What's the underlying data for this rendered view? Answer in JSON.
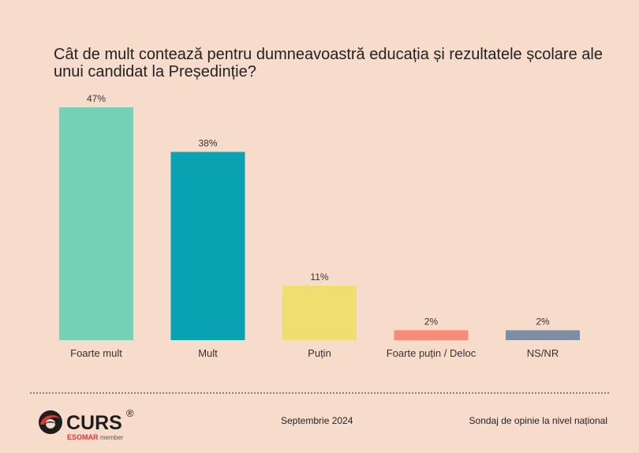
{
  "chart_data": {
    "type": "bar",
    "title": "Cât de mult contează pentru dumneavoastră educația și rezultatele școlare ale unui candidat la Președinție?",
    "categories": [
      "Foarte mult",
      "Mult",
      "Puțin",
      "Foarte puțin / Deloc",
      "NS/NR"
    ],
    "values": [
      47,
      38,
      11,
      2,
      2
    ],
    "value_labels": [
      "47%",
      "38%",
      "11%",
      "2%",
      "2%"
    ],
    "colors": [
      "#74d1b5",
      "#08a2b3",
      "#f1de70",
      "#f88b79",
      "#7e8ea2"
    ],
    "ylim": [
      0,
      47
    ],
    "xlabel": "",
    "ylabel": ""
  },
  "footer": {
    "date": "Septembrie 2024",
    "source": "Sondaj de opinie la nivel național"
  },
  "logo": {
    "name": "CURS",
    "registered": "®",
    "tagline_brand": "ESOMAR",
    "tagline_member": "member"
  }
}
